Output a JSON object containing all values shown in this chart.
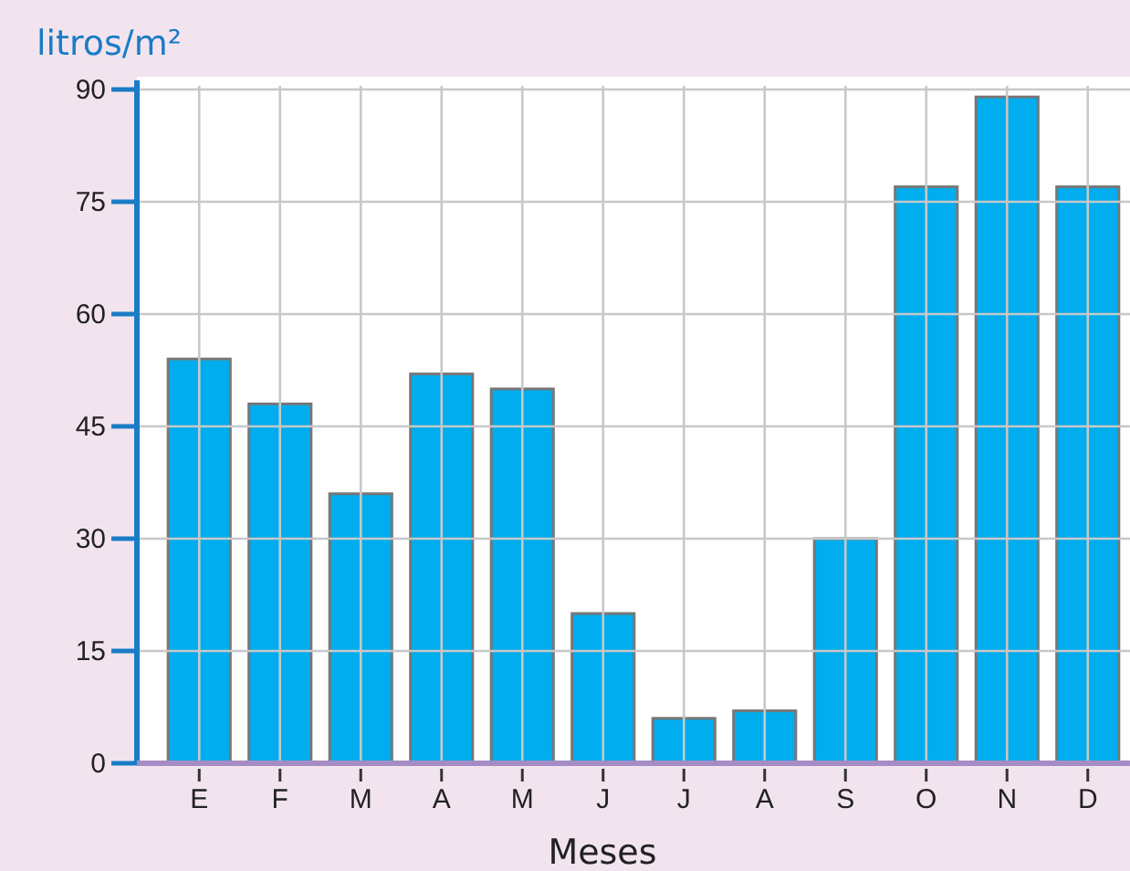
{
  "chart_data": {
    "type": "bar",
    "ylabel": "litros/m²",
    "xlabel": "Meses",
    "categories": [
      "E",
      "F",
      "M",
      "A",
      "M",
      "J",
      "J",
      "A",
      "S",
      "O",
      "N",
      "D"
    ],
    "values": [
      54,
      48,
      36,
      52,
      50,
      20,
      6,
      7,
      30,
      77,
      89,
      77
    ],
    "color": "#00adef",
    "ylim": [
      0,
      90
    ],
    "yticks": [
      0,
      15,
      30,
      45,
      60,
      75,
      90
    ],
    "grid": true
  }
}
